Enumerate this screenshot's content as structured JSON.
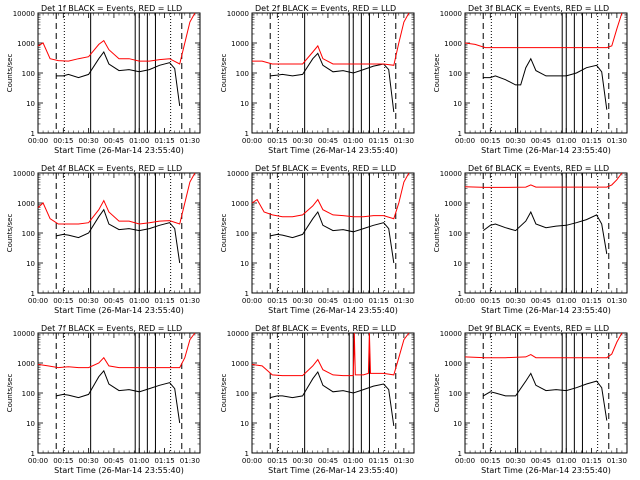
{
  "chart_data": {
    "type": "line",
    "ylabel": "Counts/sec",
    "xlabel": "Start Time (26-Mar-14 23:55:40)",
    "xlim": [
      0,
      1.6
    ],
    "ylim": [
      1,
      10000
    ],
    "y_scale": "log",
    "x_ticks": [
      "00:00",
      "00:15",
      "00:30",
      "00:45",
      "01:00",
      "01:15",
      "01:30"
    ],
    "y_ticks": [
      "1",
      "10",
      "100",
      "1000",
      "10000"
    ],
    "series_colors": {
      "events": "#000000",
      "lld": "#ff0000"
    },
    "dashed_lines": [
      0.18,
      1.42
    ],
    "dotted_lines": [
      0.26,
      1.31
    ],
    "solid_lines": [
      0.52,
      0.96,
      1.0,
      1.08,
      1.16
    ],
    "panels": [
      {
        "title": "Det 1f BLACK = Events, RED = LLD",
        "red": [
          [
            0,
            800
          ],
          [
            0.05,
            1000
          ],
          [
            0.12,
            300
          ],
          [
            0.2,
            260
          ],
          [
            0.3,
            250
          ],
          [
            0.4,
            300
          ],
          [
            0.5,
            350
          ],
          [
            0.6,
            900
          ],
          [
            0.65,
            1200
          ],
          [
            0.7,
            600
          ],
          [
            0.8,
            300
          ],
          [
            0.9,
            300
          ],
          [
            1.0,
            250
          ],
          [
            1.1,
            250
          ],
          [
            1.2,
            280
          ],
          [
            1.3,
            300
          ],
          [
            1.4,
            200
          ],
          [
            1.45,
            1000
          ],
          [
            1.5,
            5000
          ],
          [
            1.55,
            10000
          ]
        ],
        "black": [
          [
            0.18,
            80
          ],
          [
            0.25,
            80
          ],
          [
            0.3,
            90
          ],
          [
            0.4,
            70
          ],
          [
            0.5,
            90
          ],
          [
            0.6,
            300
          ],
          [
            0.65,
            500
          ],
          [
            0.7,
            200
          ],
          [
            0.8,
            120
          ],
          [
            0.9,
            130
          ],
          [
            1.0,
            110
          ],
          [
            1.1,
            130
          ],
          [
            1.2,
            180
          ],
          [
            1.3,
            220
          ],
          [
            1.35,
            140
          ],
          [
            1.4,
            8
          ]
        ]
      },
      {
        "title": "Det 2f BLACK = Events, RED = LLD",
        "red": [
          [
            0,
            250
          ],
          [
            0.1,
            250
          ],
          [
            0.2,
            200
          ],
          [
            0.3,
            200
          ],
          [
            0.4,
            200
          ],
          [
            0.5,
            200
          ],
          [
            0.6,
            500
          ],
          [
            0.65,
            800
          ],
          [
            0.7,
            300
          ],
          [
            0.8,
            200
          ],
          [
            0.9,
            200
          ],
          [
            1.0,
            200
          ],
          [
            1.1,
            200
          ],
          [
            1.2,
            200
          ],
          [
            1.3,
            200
          ],
          [
            1.4,
            180
          ],
          [
            1.45,
            1000
          ],
          [
            1.5,
            5000
          ],
          [
            1.55,
            10000
          ]
        ],
        "black": [
          [
            0.18,
            80
          ],
          [
            0.25,
            85
          ],
          [
            0.3,
            90
          ],
          [
            0.4,
            80
          ],
          [
            0.5,
            90
          ],
          [
            0.6,
            300
          ],
          [
            0.65,
            450
          ],
          [
            0.7,
            180
          ],
          [
            0.8,
            110
          ],
          [
            0.9,
            120
          ],
          [
            1.0,
            100
          ],
          [
            1.1,
            130
          ],
          [
            1.2,
            170
          ],
          [
            1.3,
            200
          ],
          [
            1.35,
            130
          ],
          [
            1.4,
            5
          ]
        ]
      },
      {
        "title": "Det 3f BLACK = Events, RED = LLD",
        "red": [
          [
            0,
            1000
          ],
          [
            0.1,
            900
          ],
          [
            0.2,
            700
          ],
          [
            0.3,
            700
          ],
          [
            0.4,
            700
          ],
          [
            0.5,
            700
          ],
          [
            0.6,
            700
          ],
          [
            0.7,
            700
          ],
          [
            0.8,
            700
          ],
          [
            0.9,
            700
          ],
          [
            1.0,
            700
          ],
          [
            1.1,
            700
          ],
          [
            1.2,
            700
          ],
          [
            1.3,
            700
          ],
          [
            1.4,
            700
          ],
          [
            1.45,
            800
          ],
          [
            1.5,
            3000
          ],
          [
            1.55,
            10000
          ]
        ],
        "black": [
          [
            0.18,
            70
          ],
          [
            0.25,
            70
          ],
          [
            0.3,
            80
          ],
          [
            0.4,
            60
          ],
          [
            0.5,
            40
          ],
          [
            0.55,
            40
          ],
          [
            0.6,
            150
          ],
          [
            0.65,
            300
          ],
          [
            0.7,
            120
          ],
          [
            0.8,
            80
          ],
          [
            0.9,
            80
          ],
          [
            1.0,
            80
          ],
          [
            1.1,
            100
          ],
          [
            1.2,
            150
          ],
          [
            1.3,
            180
          ],
          [
            1.35,
            110
          ],
          [
            1.4,
            6
          ]
        ]
      },
      {
        "title": "Det 4f BLACK = Events, RED = LLD",
        "red": [
          [
            0,
            700
          ],
          [
            0.05,
            1000
          ],
          [
            0.12,
            300
          ],
          [
            0.2,
            200
          ],
          [
            0.3,
            200
          ],
          [
            0.4,
            200
          ],
          [
            0.5,
            220
          ],
          [
            0.6,
            600
          ],
          [
            0.65,
            1200
          ],
          [
            0.7,
            500
          ],
          [
            0.8,
            250
          ],
          [
            0.9,
            250
          ],
          [
            1.0,
            200
          ],
          [
            1.1,
            220
          ],
          [
            1.2,
            250
          ],
          [
            1.3,
            260
          ],
          [
            1.4,
            200
          ],
          [
            1.45,
            1000
          ],
          [
            1.5,
            5000
          ],
          [
            1.55,
            10000
          ]
        ],
        "black": [
          [
            0.18,
            80
          ],
          [
            0.25,
            90
          ],
          [
            0.3,
            85
          ],
          [
            0.4,
            70
          ],
          [
            0.5,
            100
          ],
          [
            0.6,
            350
          ],
          [
            0.65,
            600
          ],
          [
            0.7,
            200
          ],
          [
            0.8,
            130
          ],
          [
            0.9,
            140
          ],
          [
            1.0,
            120
          ],
          [
            1.1,
            140
          ],
          [
            1.2,
            180
          ],
          [
            1.3,
            220
          ],
          [
            1.35,
            140
          ],
          [
            1.4,
            10
          ]
        ]
      },
      {
        "title": "Det 5f BLACK = Events, RED = LLD",
        "red": [
          [
            0,
            1000
          ],
          [
            0.05,
            1300
          ],
          [
            0.12,
            500
          ],
          [
            0.2,
            400
          ],
          [
            0.3,
            350
          ],
          [
            0.4,
            350
          ],
          [
            0.5,
            400
          ],
          [
            0.6,
            800
          ],
          [
            0.65,
            1300
          ],
          [
            0.7,
            600
          ],
          [
            0.8,
            400
          ],
          [
            0.9,
            380
          ],
          [
            1.0,
            350
          ],
          [
            1.1,
            350
          ],
          [
            1.2,
            380
          ],
          [
            1.3,
            380
          ],
          [
            1.4,
            300
          ],
          [
            1.45,
            1000
          ],
          [
            1.5,
            5000
          ],
          [
            1.55,
            10000
          ]
        ],
        "black": [
          [
            0.18,
            80
          ],
          [
            0.25,
            90
          ],
          [
            0.3,
            85
          ],
          [
            0.4,
            70
          ],
          [
            0.5,
            90
          ],
          [
            0.6,
            300
          ],
          [
            0.65,
            500
          ],
          [
            0.7,
            180
          ],
          [
            0.8,
            120
          ],
          [
            0.9,
            130
          ],
          [
            1.0,
            110
          ],
          [
            1.1,
            140
          ],
          [
            1.2,
            180
          ],
          [
            1.3,
            220
          ],
          [
            1.35,
            140
          ],
          [
            1.4,
            10
          ]
        ]
      },
      {
        "title": "Det 6f BLACK = Events, RED = LLD",
        "red": [
          [
            0,
            3500
          ],
          [
            0.2,
            3300
          ],
          [
            0.4,
            3300
          ],
          [
            0.6,
            3400
          ],
          [
            0.65,
            4000
          ],
          [
            0.7,
            3400
          ],
          [
            0.8,
            3400
          ],
          [
            1.0,
            3400
          ],
          [
            1.2,
            3400
          ],
          [
            1.4,
            3400
          ],
          [
            1.45,
            4000
          ],
          [
            1.5,
            6000
          ],
          [
            1.55,
            10000
          ]
        ],
        "black": [
          [
            0.18,
            120
          ],
          [
            0.25,
            180
          ],
          [
            0.3,
            200
          ],
          [
            0.4,
            150
          ],
          [
            0.5,
            120
          ],
          [
            0.6,
            250
          ],
          [
            0.65,
            500
          ],
          [
            0.7,
            200
          ],
          [
            0.8,
            150
          ],
          [
            0.9,
            170
          ],
          [
            1.0,
            180
          ],
          [
            1.1,
            220
          ],
          [
            1.2,
            280
          ],
          [
            1.3,
            400
          ],
          [
            1.35,
            200
          ],
          [
            1.4,
            20
          ]
        ]
      },
      {
        "title": "Det 7f BLACK = Events, RED = LLD",
        "red": [
          [
            0,
            900
          ],
          [
            0.1,
            800
          ],
          [
            0.2,
            700
          ],
          [
            0.3,
            750
          ],
          [
            0.4,
            700
          ],
          [
            0.5,
            700
          ],
          [
            0.6,
            1000
          ],
          [
            0.65,
            1500
          ],
          [
            0.7,
            800
          ],
          [
            0.8,
            700
          ],
          [
            0.9,
            700
          ],
          [
            1.0,
            700
          ],
          [
            1.1,
            700
          ],
          [
            1.2,
            700
          ],
          [
            1.3,
            700
          ],
          [
            1.4,
            700
          ],
          [
            1.45,
            1500
          ],
          [
            1.5,
            6000
          ],
          [
            1.55,
            10000
          ]
        ],
        "black": [
          [
            0.18,
            80
          ],
          [
            0.25,
            90
          ],
          [
            0.3,
            85
          ],
          [
            0.4,
            70
          ],
          [
            0.5,
            90
          ],
          [
            0.6,
            350
          ],
          [
            0.65,
            550
          ],
          [
            0.7,
            200
          ],
          [
            0.8,
            120
          ],
          [
            0.9,
            130
          ],
          [
            1.0,
            110
          ],
          [
            1.1,
            140
          ],
          [
            1.2,
            180
          ],
          [
            1.3,
            220
          ],
          [
            1.35,
            140
          ],
          [
            1.4,
            10
          ]
        ]
      },
      {
        "title": "Det 8f BLACK = Events, RED = LLD",
        "red": [
          [
            0,
            900
          ],
          [
            0.1,
            800
          ],
          [
            0.2,
            400
          ],
          [
            0.3,
            380
          ],
          [
            0.4,
            380
          ],
          [
            0.5,
            380
          ],
          [
            0.6,
            800
          ],
          [
            0.65,
            1300
          ],
          [
            0.7,
            600
          ],
          [
            0.8,
            400
          ],
          [
            0.9,
            380
          ],
          [
            1.0,
            380
          ],
          [
            1.01,
            10000
          ],
          [
            1.02,
            400
          ],
          [
            1.1,
            400
          ],
          [
            1.15,
            450
          ],
          [
            1.16,
            10000
          ],
          [
            1.17,
            450
          ],
          [
            1.3,
            450
          ],
          [
            1.4,
            400
          ],
          [
            1.45,
            1500
          ],
          [
            1.5,
            6000
          ],
          [
            1.55,
            10000
          ]
        ],
        "black": [
          [
            0.18,
            70
          ],
          [
            0.25,
            80
          ],
          [
            0.3,
            80
          ],
          [
            0.4,
            70
          ],
          [
            0.5,
            80
          ],
          [
            0.6,
            300
          ],
          [
            0.65,
            500
          ],
          [
            0.7,
            180
          ],
          [
            0.8,
            110
          ],
          [
            0.9,
            120
          ],
          [
            1.0,
            100
          ],
          [
            1.1,
            130
          ],
          [
            1.2,
            170
          ],
          [
            1.3,
            200
          ],
          [
            1.35,
            130
          ],
          [
            1.4,
            8
          ]
        ]
      },
      {
        "title": "Det 9f BLACK = Events, RED = LLD",
        "red": [
          [
            0,
            1600
          ],
          [
            0.2,
            1500
          ],
          [
            0.4,
            1500
          ],
          [
            0.6,
            1600
          ],
          [
            0.65,
            1900
          ],
          [
            0.7,
            1500
          ],
          [
            0.8,
            1500
          ],
          [
            1.0,
            1500
          ],
          [
            1.2,
            1500
          ],
          [
            1.4,
            1500
          ],
          [
            1.45,
            2000
          ],
          [
            1.5,
            5000
          ],
          [
            1.55,
            10000
          ]
        ],
        "black": [
          [
            0.18,
            80
          ],
          [
            0.25,
            110
          ],
          [
            0.3,
            100
          ],
          [
            0.4,
            80
          ],
          [
            0.5,
            80
          ],
          [
            0.6,
            250
          ],
          [
            0.65,
            450
          ],
          [
            0.7,
            180
          ],
          [
            0.8,
            120
          ],
          [
            0.9,
            130
          ],
          [
            1.0,
            120
          ],
          [
            1.1,
            150
          ],
          [
            1.2,
            200
          ],
          [
            1.3,
            250
          ],
          [
            1.35,
            150
          ],
          [
            1.4,
            12
          ]
        ]
      }
    ]
  }
}
